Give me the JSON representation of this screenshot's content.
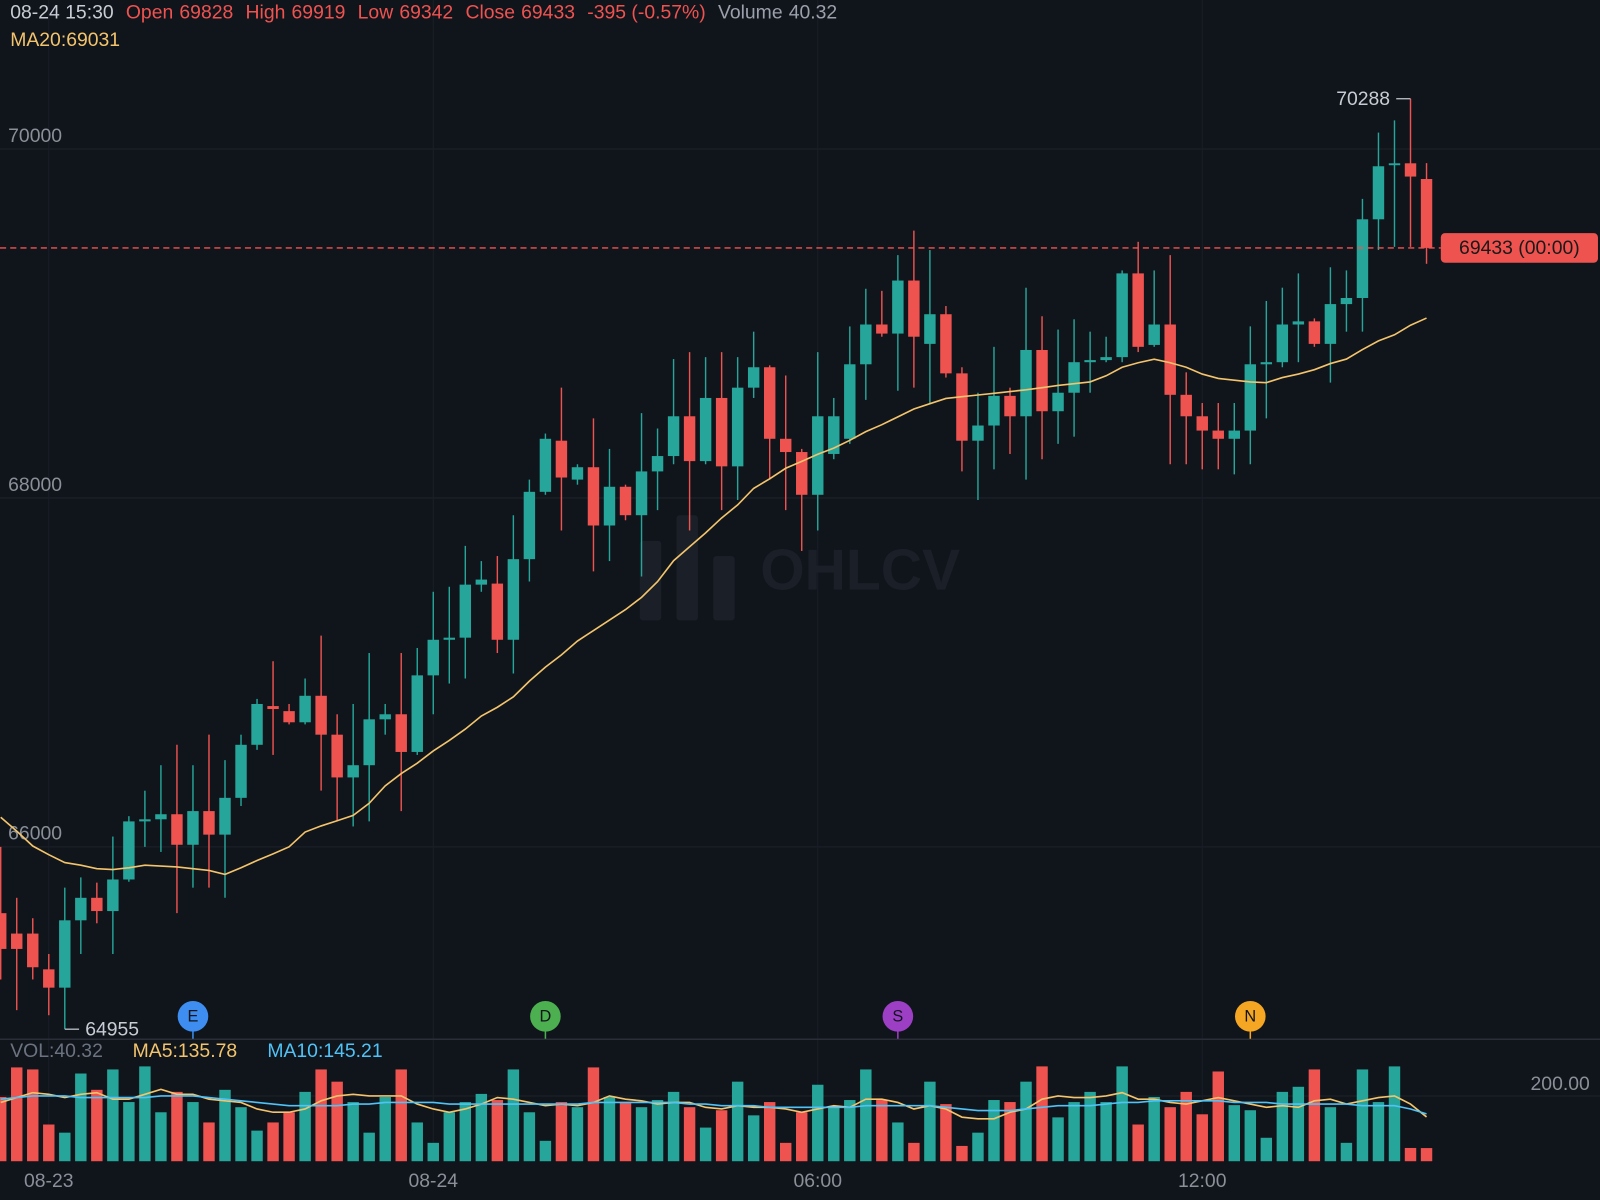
{
  "chart_data": {
    "type": "candlestick",
    "time": "08-24 15:30",
    "labels": {
      "open": "Open",
      "high": "High",
      "low": "Low",
      "close": "Close",
      "volume": "Volume",
      "ma20": "MA20:",
      "vol": "VOL:",
      "vol_ma5": "MA5:",
      "vol_ma10": "MA10:"
    },
    "change": "-395 (-0.57%)",
    "watermark": "OHLCV",
    "last_price_label": "69433 (00:00)",
    "events": [
      "E",
      "D",
      "S",
      "N"
    ],
    "event_colors": [
      "#3d8ef0",
      "#4caf50",
      "#9c3fc4",
      "#f5a623"
    ],
    "categories": [
      null,
      null,
      null,
      "08-23",
      null,
      null,
      null,
      null,
      null,
      null,
      null,
      null,
      null,
      null,
      null,
      null,
      null,
      null,
      null,
      null,
      null,
      null,
      null,
      null,
      null,
      null,
      null,
      "08-24",
      null,
      null,
      null,
      null,
      null,
      null,
      null,
      null,
      null,
      null,
      null,
      null,
      null,
      null,
      null,
      null,
      null,
      null,
      null,
      null,
      null,
      null,
      null,
      "06:00",
      null,
      null,
      null,
      null,
      null,
      null,
      null,
      null,
      null,
      null,
      null,
      null,
      null,
      null,
      null,
      null,
      null,
      null,
      null,
      null,
      null,
      null,
      null,
      "12:00",
      null,
      null,
      null,
      null,
      null,
      null,
      null,
      null,
      null,
      null,
      null,
      null,
      null,
      null
    ],
    "open": [
      65620,
      65503,
      65503,
      65298,
      65193,
      65579,
      65708,
      65632,
      65813,
      66146,
      66158,
      66187,
      66012,
      66205,
      66070,
      66281,
      66585,
      66807,
      66778,
      66714,
      66866,
      66643,
      66398,
      66468,
      66731,
      66760,
      66544,
      66983,
      67187,
      67199,
      67503,
      67509,
      67187,
      67649,
      68035,
      68328,
      68105,
      68176,
      67842,
      68064,
      67901,
      68152,
      68240,
      68468,
      68211,
      68573,
      68181,
      68632,
      68749,
      68339,
      68263,
      68018,
      68252,
      68339,
      68766,
      68994,
      68942,
      69246,
      68883,
      69053,
      68714,
      68328,
      68415,
      68585,
      68468,
      68848,
      68497,
      68603,
      68778,
      68790,
      68807,
      69287,
      68877,
      68994,
      68591,
      68468,
      68386,
      68339,
      68386,
      68766,
      68778,
      68994,
      69012,
      68883,
      69111,
      69146,
      69597,
      69907,
      69918,
      69828
    ],
    "high": [
      66000,
      65708,
      65591,
      65386,
      65766,
      65825,
      65795,
      66059,
      66176,
      66322,
      66468,
      66585,
      66468,
      66643,
      66497,
      66643,
      66848,
      67064,
      66819,
      66965,
      67211,
      66760,
      66819,
      67111,
      66819,
      67111,
      67140,
      67462,
      67491,
      67725,
      67638,
      67667,
      67901,
      68105,
      68369,
      68632,
      68193,
      68456,
      68281,
      68076,
      68486,
      68398,
      68796,
      68836,
      68807,
      68836,
      68807,
      68953,
      68760,
      68702,
      68281,
      68836,
      68573,
      68983,
      69199,
      69187,
      69392,
      69532,
      69421,
      69100,
      68749,
      68603,
      68866,
      68632,
      69205,
      69041,
      68965,
      69024,
      68953,
      68924,
      69304,
      69468,
      69304,
      69392,
      68720,
      68544,
      68544,
      68544,
      68983,
      69129,
      69205,
      69287,
      69029,
      69322,
      69304,
      69714,
      70094,
      70164,
      70288,
      69919
    ],
    "low": [
      65240,
      65064,
      65240,
      65035,
      64955,
      65386,
      65562,
      65386,
      65800,
      66000,
      65971,
      65620,
      65766,
      65766,
      65708,
      66234,
      66556,
      66527,
      66702,
      66702,
      66322,
      66146,
      66117,
      66146,
      66643,
      66205,
      66527,
      66760,
      66936,
      66965,
      67462,
      67111,
      66994,
      67521,
      68018,
      67813,
      68076,
      67579,
      67638,
      67872,
      67550,
      67930,
      68193,
      67813,
      68193,
      67930,
      67988,
      68573,
      68105,
      67930,
      67696,
      67813,
      68222,
      68310,
      68562,
      68924,
      68614,
      68632,
      68544,
      68690,
      68152,
      67988,
      68164,
      68252,
      68105,
      68222,
      68310,
      68351,
      68603,
      68778,
      68778,
      68836,
      68866,
      68193,
      68193,
      68164,
      68164,
      68135,
      68193,
      68456,
      68749,
      68778,
      68866,
      68661,
      68953,
      68953,
      69421,
      69439,
      69439,
      69342
    ],
    "close": [
      65415,
      65415,
      65310,
      65193,
      65579,
      65708,
      65632,
      65813,
      66146,
      66158,
      66187,
      66012,
      66205,
      66070,
      66281,
      66585,
      66819,
      66790,
      66714,
      66866,
      66643,
      66398,
      66468,
      66731,
      66760,
      66544,
      66983,
      67187,
      67199,
      67503,
      67532,
      67187,
      67649,
      68035,
      68339,
      68117,
      68176,
      67842,
      68064,
      67901,
      68152,
      68240,
      68468,
      68211,
      68573,
      68181,
      68632,
      68749,
      68339,
      68263,
      68018,
      68468,
      68468,
      68766,
      68994,
      68942,
      69246,
      68924,
      69053,
      68714,
      68328,
      68415,
      68585,
      68468,
      68848,
      68497,
      68603,
      68778,
      68790,
      68807,
      69287,
      68866,
      68994,
      68591,
      68468,
      68386,
      68339,
      68386,
      68766,
      68778,
      68994,
      69012,
      68883,
      69111,
      69146,
      69597,
      69901,
      69918,
      69842,
      69433
    ],
    "volume": [
      196.9,
      287.5,
      281.3,
      112.5,
      87.5,
      268.8,
      218.8,
      281.3,
      181.3,
      290.6,
      150,
      212.5,
      181.3,
      118.8,
      218.8,
      165.6,
      93.8,
      118.8,
      150,
      212.5,
      281.3,
      243.8,
      181.3,
      87.5,
      196.9,
      281.3,
      118.8,
      56.3,
      150,
      181.3,
      206.3,
      187.5,
      281.3,
      150,
      62.5,
      181.3,
      165.6,
      287.5,
      196.9,
      181.3,
      165.6,
      187.5,
      212.5,
      165.6,
      103.1,
      156.3,
      243.8,
      140.6,
      181.3,
      56.3,
      150,
      234.4,
      165.6,
      187.5,
      281.3,
      187.5,
      118.8,
      56.3,
      243.8,
      175,
      46.9,
      87.5,
      187.5,
      181.3,
      243.8,
      290.6,
      134.4,
      181.3,
      212.5,
      181.3,
      290.6,
      112.5,
      196.9,
      165.6,
      212.5,
      143.8,
      275,
      171.9,
      156.3,
      71.9,
      212.5,
      228.1,
      281.3,
      165.6,
      56.3,
      281.3,
      181.3,
      290.6,
      40.6,
      40.32
    ],
    "ma20": [
      66170,
      66090,
      66005,
      65955,
      65910,
      65895,
      65875,
      65870,
      65880,
      65895,
      65890,
      65885,
      65875,
      65865,
      65842,
      65880,
      65922,
      65960,
      66000,
      66085,
      66120,
      66150,
      66180,
      66250,
      66350,
      66420,
      66480,
      66550,
      66610,
      66675,
      66750,
      66800,
      66860,
      66950,
      67030,
      67100,
      67180,
      67240,
      67300,
      67360,
      67430,
      67520,
      67640,
      67720,
      67800,
      67885,
      67960,
      68055,
      68110,
      68170,
      68210,
      68250,
      68285,
      68330,
      68380,
      68420,
      68465,
      68510,
      68540,
      68570,
      68580,
      68590,
      68600,
      68610,
      68620,
      68632,
      68645,
      68655,
      68665,
      68700,
      68749,
      68775,
      68795,
      68775,
      68749,
      68710,
      68685,
      68675,
      68665,
      68661,
      68690,
      68710,
      68735,
      68770,
      68796,
      68850,
      68900,
      68935,
      68990,
      69031
    ],
    "vol_ma5": [
      180,
      195,
      210,
      205,
      195,
      205,
      210,
      190,
      190,
      205,
      220,
      205,
      205,
      190,
      185,
      180,
      160,
      150,
      150,
      160,
      185,
      200,
      205,
      200,
      200,
      200,
      175,
      160,
      150,
      160,
      175,
      195,
      190,
      180,
      170,
      175,
      170,
      180,
      200,
      190,
      185,
      175,
      180,
      180,
      165,
      160,
      170,
      165,
      165,
      160,
      150,
      160,
      170,
      165,
      190,
      190,
      180,
      160,
      170,
      160,
      135,
      130,
      130,
      150,
      160,
      190,
      200,
      195,
      195,
      200,
      210,
      190,
      190,
      180,
      175,
      185,
      195,
      185,
      175,
      165,
      170,
      165,
      185,
      190,
      175,
      185,
      195,
      200,
      175,
      135.78
    ],
    "vol_ma10": [
      190,
      195,
      200,
      200,
      200,
      195,
      195,
      195,
      195,
      195,
      200,
      200,
      200,
      195,
      190,
      185,
      180,
      175,
      170,
      170,
      170,
      170,
      175,
      175,
      180,
      180,
      180,
      180,
      175,
      175,
      175,
      175,
      175,
      175,
      175,
      175,
      175,
      180,
      180,
      180,
      180,
      180,
      180,
      175,
      175,
      170,
      170,
      170,
      165,
      165,
      165,
      165,
      165,
      165,
      170,
      170,
      170,
      170,
      170,
      165,
      160,
      155,
      155,
      155,
      160,
      165,
      170,
      170,
      170,
      175,
      180,
      180,
      185,
      185,
      185,
      185,
      185,
      180,
      180,
      180,
      175,
      175,
      175,
      175,
      175,
      170,
      170,
      170,
      160,
      145.21
    ],
    "ylim": [
      64900,
      70854
    ],
    "yticks": [
      66000,
      68000,
      70000
    ],
    "vol_ylim": [
      0,
      369
    ],
    "vol_yticks": [
      {
        "value": 200,
        "label": "200.00"
      }
    ],
    "up_color": "#26a69a",
    "down_color": "#ef5350",
    "ma20_color": "#f3c46c",
    "vol_ma5_color": "#f3c46c",
    "vol_ma10_color": "#4fc3f7",
    "grid": true
  }
}
